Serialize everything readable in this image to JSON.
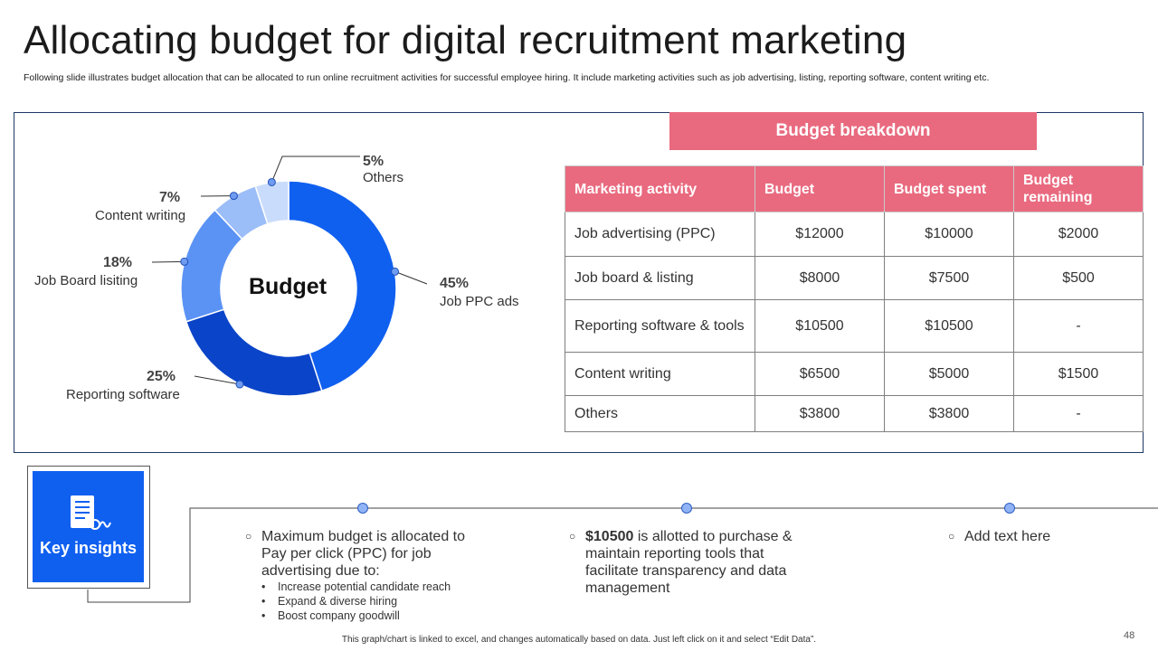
{
  "title": "Allocating budget for digital recruitment marketing",
  "subtitle": "Following slide illustrates budget allocation that can be allocated to run online recruitment activities for successful employee hiring. It include marketing activities such as job advertising, listing, reporting software, content writing etc.",
  "chart_data": {
    "type": "pie",
    "donut": true,
    "center_label": "Budget",
    "slices": [
      {
        "label": "Job PPC ads",
        "value": 45,
        "pct_text": "45%",
        "color": "#1060f0"
      },
      {
        "label": "Reporting software",
        "value": 25,
        "pct_text": "25%",
        "color": "#0a44c8"
      },
      {
        "label": "Job Board lisiting",
        "value": 18,
        "pct_text": "18%",
        "color": "#5b93f5"
      },
      {
        "label": "Content writing",
        "value": 7,
        "pct_text": "7%",
        "color": "#9bbdf8"
      },
      {
        "label": "Others",
        "value": 5,
        "pct_text": "5%",
        "color": "#c9dcfb"
      }
    ]
  },
  "breakdown": {
    "banner": "Budget breakdown",
    "headers": [
      "Marketing activity",
      "Budget",
      "Budget spent",
      "Budget remaining"
    ],
    "rows": [
      [
        "Job advertising (PPC)",
        "$12000",
        "$10000",
        "$2000"
      ],
      [
        "Job board & listing",
        "$8000",
        "$7500",
        "$500"
      ],
      [
        "Reporting software & tools",
        "$10500",
        "$10500",
        "-"
      ],
      [
        "Content writing",
        "$6500",
        "$5000",
        "$1500"
      ],
      [
        "Others",
        "$3800",
        "$3800",
        "-"
      ]
    ]
  },
  "insights": {
    "label": "Key insights",
    "icon": "report-chart-icon",
    "item1": {
      "text": "Maximum budget is allocated to Pay per click (PPC) for job advertising due to:",
      "subitems": [
        "Increase potential candidate reach",
        "Expand & diverse hiring",
        "Boost company goodwill"
      ]
    },
    "item2": {
      "bold": "$10500",
      "text": " is allotted to purchase & maintain reporting tools that facilitate transparency and data management"
    },
    "item3": {
      "text": "Add text here"
    }
  },
  "footer": "This graph/chart is linked to excel, and changes automatically based on data. Just left click on it and select “Edit Data”.",
  "page_number": "48",
  "colors": {
    "accent_pink": "#e96a7f",
    "accent_blue": "#1060f0"
  }
}
